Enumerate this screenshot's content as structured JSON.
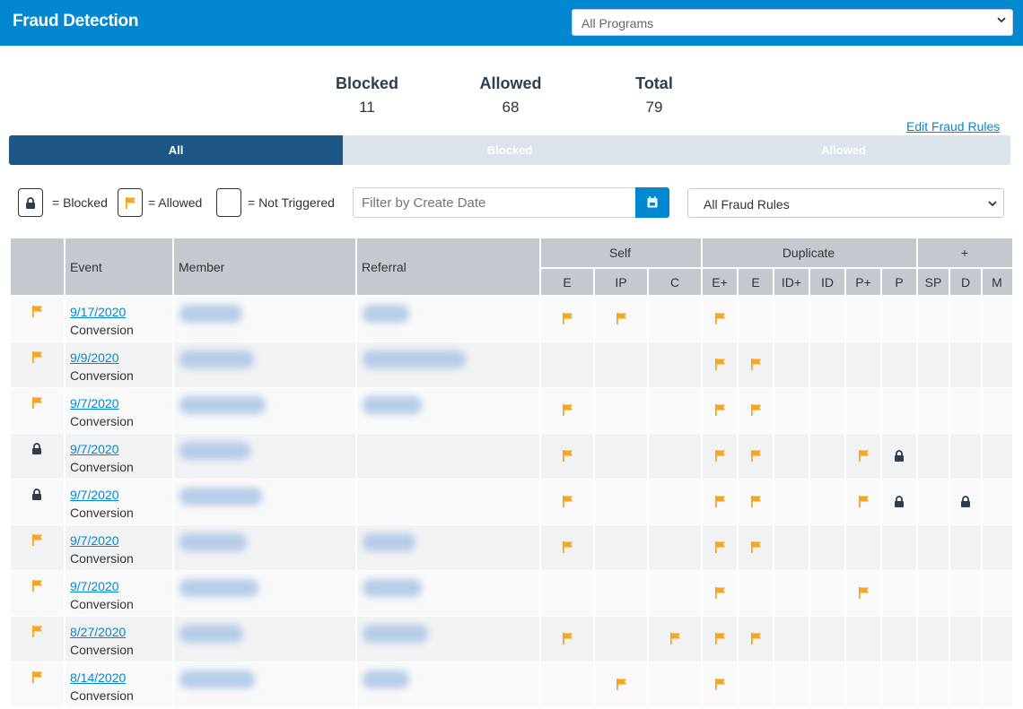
{
  "header": {
    "title": "Fraud Detection",
    "program_select": "All Programs"
  },
  "stats": [
    {
      "label": "Blocked",
      "value": "11"
    },
    {
      "label": "Allowed",
      "value": "68"
    },
    {
      "label": "Total",
      "value": "79"
    }
  ],
  "edit_rules_link": "Edit Fraud Rules",
  "tabs": [
    {
      "label": "All",
      "active": true
    },
    {
      "label": "Blocked",
      "active": false
    },
    {
      "label": "Allowed",
      "active": false
    }
  ],
  "legend": {
    "blocked": "= Blocked",
    "allowed": "= Allowed",
    "not_triggered": "= Not Triggered"
  },
  "filters": {
    "date_placeholder": "Filter by Create Date",
    "rules_select": "All Fraud Rules"
  },
  "colors": {
    "header_blue": "#0288d1",
    "tab_active": "#1c5785",
    "flag": "#f5a623",
    "lock": "#2c3e50"
  },
  "table": {
    "headers": {
      "event": "Event",
      "member": "Member",
      "referral": "Referral"
    },
    "groups": [
      "Self",
      "Duplicate",
      "+"
    ],
    "subcolumns": [
      "E",
      "IP",
      "C",
      "E+",
      "E",
      "ID+",
      "ID",
      "P+",
      "P",
      "SP",
      "D",
      "M"
    ],
    "rows": [
      {
        "status": "allowed",
        "date": "9/17/2020",
        "type": "Conversion",
        "has_referral": true,
        "marks": [
          "flag",
          "flag",
          "",
          "flag",
          "",
          "",
          "",
          "",
          "",
          "",
          "",
          ""
        ]
      },
      {
        "status": "allowed",
        "date": "9/9/2020",
        "type": "Conversion",
        "has_referral": true,
        "marks": [
          "",
          "",
          "",
          "flag",
          "flag",
          "",
          "",
          "",
          "",
          "",
          "",
          ""
        ]
      },
      {
        "status": "allowed",
        "date": "9/7/2020",
        "type": "Conversion",
        "has_referral": true,
        "marks": [
          "flag",
          "",
          "",
          "flag",
          "flag",
          "",
          "",
          "",
          "",
          "",
          "",
          ""
        ]
      },
      {
        "status": "blocked",
        "date": "9/7/2020",
        "type": "Conversion",
        "has_referral": false,
        "marks": [
          "flag",
          "",
          "",
          "flag",
          "flag",
          "",
          "",
          "flag",
          "lock",
          "",
          "",
          ""
        ]
      },
      {
        "status": "blocked",
        "date": "9/7/2020",
        "type": "Conversion",
        "has_referral": false,
        "marks": [
          "flag",
          "",
          "",
          "flag",
          "flag",
          "",
          "",
          "flag",
          "lock",
          "",
          "lock",
          ""
        ]
      },
      {
        "status": "allowed",
        "date": "9/7/2020",
        "type": "Conversion",
        "has_referral": true,
        "marks": [
          "flag",
          "",
          "",
          "flag",
          "flag",
          "",
          "",
          "",
          "",
          "",
          "",
          ""
        ]
      },
      {
        "status": "allowed",
        "date": "9/7/2020",
        "type": "Conversion",
        "has_referral": true,
        "marks": [
          "",
          "",
          "",
          "flag",
          "",
          "",
          "",
          "flag",
          "",
          "",
          "",
          ""
        ]
      },
      {
        "status": "allowed",
        "date": "8/27/2020",
        "type": "Conversion",
        "has_referral": true,
        "marks": [
          "flag",
          "",
          "flag",
          "flag",
          "flag",
          "",
          "",
          "",
          "",
          "",
          "",
          ""
        ]
      },
      {
        "status": "allowed",
        "date": "8/14/2020",
        "type": "Conversion",
        "has_referral": true,
        "marks": [
          "",
          "flag",
          "",
          "flag",
          "",
          "",
          "",
          "",
          "",
          "",
          "",
          ""
        ]
      }
    ]
  }
}
